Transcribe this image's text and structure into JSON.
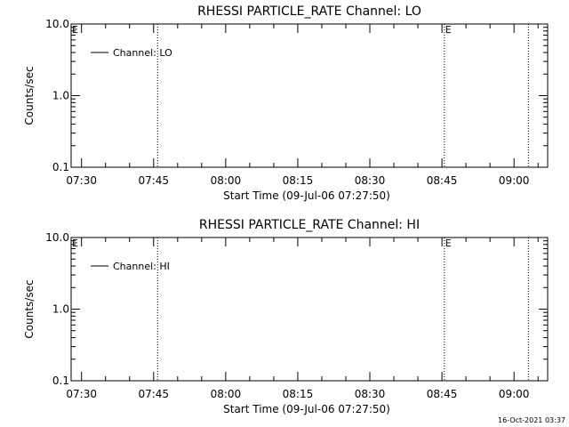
{
  "footer": {
    "timestamp": "16-Oct-2021 03:37"
  },
  "chart_data": [
    {
      "type": "line",
      "title": "RHESSI PARTICLE_RATE Channel: LO",
      "xlabel": "Start Time (09-Jul-06 07:27:50)",
      "ylabel": "Counts/sec",
      "y_scale": "log",
      "ylim": [
        0.1,
        10.0
      ],
      "y_ticks": [
        "0.1",
        "1.0",
        "10.0"
      ],
      "x_ticks": [
        "07:30",
        "07:45",
        "08:00",
        "08:15",
        "08:30",
        "08:45",
        "09:00"
      ],
      "xlim": [
        "07:27:50",
        "09:07:00"
      ],
      "grid": false,
      "legend_position": "top-left",
      "series": [
        {
          "name": "Channel: LO",
          "values": []
        }
      ],
      "event_lines": [
        {
          "time": "07:45:50",
          "flag": ""
        },
        {
          "time": "08:45:30",
          "flag": "E"
        },
        {
          "time": "09:03:00",
          "flag": ""
        }
      ],
      "left_flag": "E"
    },
    {
      "type": "line",
      "title": "RHESSI PARTICLE_RATE Channel: HI",
      "xlabel": "Start Time (09-Jul-06 07:27:50)",
      "ylabel": "Counts/sec",
      "y_scale": "log",
      "ylim": [
        0.1,
        10.0
      ],
      "y_ticks": [
        "0.1",
        "1.0",
        "10.0"
      ],
      "x_ticks": [
        "07:30",
        "07:45",
        "08:00",
        "08:15",
        "08:30",
        "08:45",
        "09:00"
      ],
      "xlim": [
        "07:27:50",
        "09:07:00"
      ],
      "grid": false,
      "legend_position": "top-left",
      "series": [
        {
          "name": "Channel: HI",
          "values": []
        }
      ],
      "event_lines": [
        {
          "time": "07:45:50",
          "flag": ""
        },
        {
          "time": "08:45:30",
          "flag": "E"
        },
        {
          "time": "09:03:00",
          "flag": ""
        }
      ],
      "left_flag": "E"
    }
  ]
}
